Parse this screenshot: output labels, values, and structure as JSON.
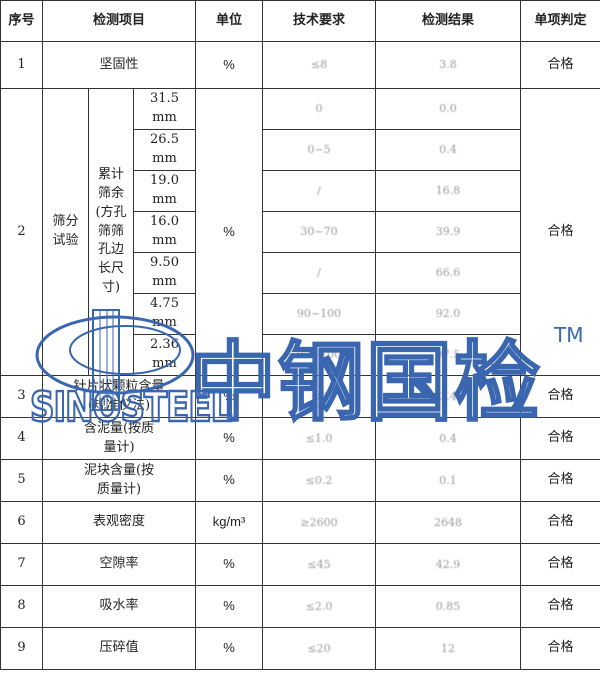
{
  "headers": {
    "no": "序号",
    "item": "检测项目",
    "unit": "单位",
    "req": "技术要求",
    "result": "检测结果",
    "judge": "单项判定"
  },
  "rows": {
    "r1": {
      "no": "1",
      "item": "坚固性",
      "unit": "%",
      "req": "≤8",
      "result": "3.8",
      "judge": "合格"
    },
    "r2": {
      "no": "2",
      "item": "筛分试验",
      "sub": "累计筛余(方孔筛筛孔边长尺寸)",
      "unit": "%",
      "judge": "合格",
      "sieves": [
        {
          "size": "31.5 mm",
          "req": "0",
          "result": "0.0"
        },
        {
          "size": "26.5 mm",
          "req": "0~5",
          "result": "0.4"
        },
        {
          "size": "19.0 mm",
          "req": "/",
          "result": "16.8"
        },
        {
          "size": "16.0 mm",
          "req": "30~70",
          "result": "39.9"
        },
        {
          "size": "9.50 mm",
          "req": "/",
          "result": "66.6"
        },
        {
          "size": "4.75 mm",
          "req": "90~100",
          "result": "92.0"
        },
        {
          "size": "2.36 mm",
          "req": "95~100",
          "result": "97.5"
        }
      ]
    },
    "r3": {
      "no": "3",
      "item": "针片状颗粒含量(规准仪法)",
      "unit": "%",
      "req": "≤8",
      "result": "3.4",
      "judge": "合格"
    },
    "r4": {
      "no": "4",
      "item": "含泥量(按质量计)",
      "unit": "%",
      "req": "≤1.0",
      "result": "0.4",
      "judge": "合格"
    },
    "r5": {
      "no": "5",
      "item": "泥块含量(按质量计)",
      "unit": "%",
      "req": "≤0.2",
      "result": "0.1",
      "judge": "合格"
    },
    "r6": {
      "no": "6",
      "item": "表观密度",
      "unit": "kg/m³",
      "req": "≥2600",
      "result": "2648",
      "judge": "合格"
    },
    "r7": {
      "no": "7",
      "item": "空隙率",
      "unit": "%",
      "req": "≤45",
      "result": "42.9",
      "judge": "合格"
    },
    "r8": {
      "no": "8",
      "item": "吸水率",
      "unit": "%",
      "req": "≤2.0",
      "result": "0.85",
      "judge": "合格"
    },
    "r9": {
      "no": "9",
      "item": "压碎值",
      "unit": "%",
      "req": "≤20",
      "result": "12",
      "judge": "合格"
    }
  },
  "watermark": {
    "cn": "中钢国检",
    "en": "SINOSTEEL",
    "tm": "TM"
  }
}
